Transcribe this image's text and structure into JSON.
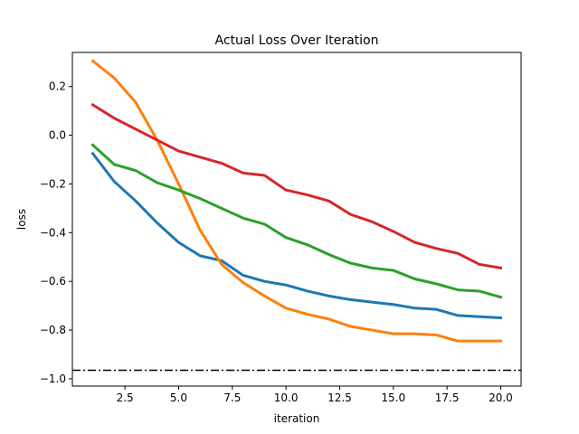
{
  "chart_data": {
    "type": "line",
    "title": "Actual Loss Over Iteration",
    "xlabel": "iteration",
    "ylabel": "loss",
    "xlim": [
      0.05,
      20.95
    ],
    "ylim": [
      -1.03,
      0.34
    ],
    "xticks": [
      2.5,
      5.0,
      7.5,
      10.0,
      12.5,
      15.0,
      17.5,
      20.0
    ],
    "xtick_labels": [
      "2.5",
      "5.0",
      "7.5",
      "10.0",
      "12.5",
      "15.0",
      "17.5",
      "20.0"
    ],
    "yticks": [
      0.2,
      0.0,
      -0.2,
      -0.4,
      -0.6,
      -0.8,
      -1.0
    ],
    "ytick_labels": [
      "0.2",
      "0.0",
      "−0.2",
      "−0.4",
      "−0.6",
      "−0.8",
      "−1.0"
    ],
    "grid": false,
    "x": [
      1,
      2,
      3,
      4,
      5,
      6,
      7,
      8,
      9,
      10,
      11,
      12,
      13,
      14,
      15,
      16,
      17,
      18,
      19,
      20
    ],
    "series": [
      {
        "color": "#1f77b4",
        "values": [
          -0.075,
          -0.19,
          -0.27,
          -0.36,
          -0.44,
          -0.495,
          -0.515,
          -0.575,
          -0.6,
          -0.615,
          -0.64,
          -0.66,
          -0.675,
          -0.685,
          -0.695,
          -0.71,
          -0.715,
          -0.74,
          -0.745,
          -0.75
        ]
      },
      {
        "color": "#ff7f0e",
        "values": [
          0.305,
          0.235,
          0.135,
          -0.02,
          -0.2,
          -0.39,
          -0.53,
          -0.605,
          -0.66,
          -0.71,
          -0.735,
          -0.755,
          -0.785,
          -0.8,
          -0.815,
          -0.815,
          -0.82,
          -0.845,
          -0.845,
          -0.845
        ]
      },
      {
        "color": "#2ca02c",
        "values": [
          -0.04,
          -0.12,
          -0.145,
          -0.195,
          -0.225,
          -0.26,
          -0.3,
          -0.34,
          -0.365,
          -0.42,
          -0.45,
          -0.49,
          -0.525,
          -0.545,
          -0.555,
          -0.59,
          -0.61,
          -0.635,
          -0.64,
          -0.665
        ]
      },
      {
        "color": "#d62728",
        "values": [
          0.125,
          0.07,
          0.025,
          -0.02,
          -0.065,
          -0.09,
          -0.115,
          -0.155,
          -0.165,
          -0.225,
          -0.245,
          -0.27,
          -0.325,
          -0.355,
          -0.395,
          -0.44,
          -0.465,
          -0.485,
          -0.53,
          -0.545
        ]
      }
    ],
    "reference_line": {
      "y": -0.965,
      "color": "#000000",
      "style": "dash-dot"
    }
  }
}
